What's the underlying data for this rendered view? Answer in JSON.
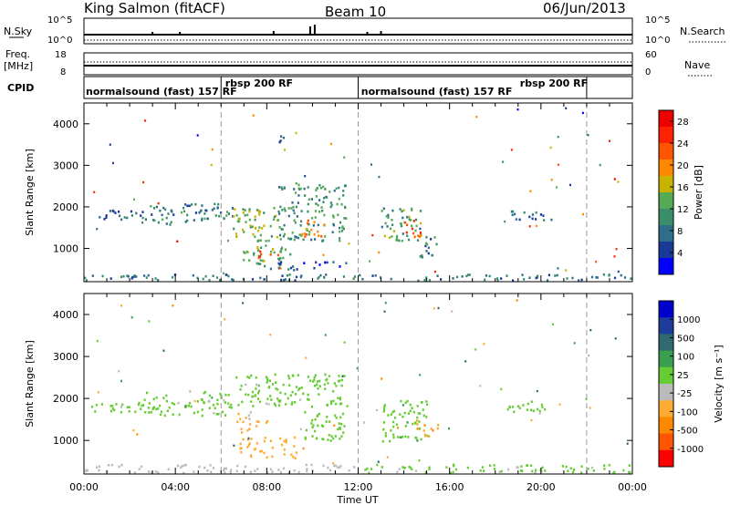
{
  "header": {
    "station": "King Salmon (fitACF)",
    "beam": "Beam 10",
    "date": "06/Jun/2013"
  },
  "strips": {
    "nsky_label": "N.Sky",
    "nsky_ticks": [
      "10^5",
      "10^0"
    ],
    "nsearch_label": "N.Search",
    "nsearch_ticks": [
      "10^5",
      "10^0"
    ],
    "freq_label": "Freq.",
    "freq_unit": "[MHz]",
    "freq_ticks": [
      "18",
      "8"
    ],
    "nave_label": "Nave",
    "nave_ticks": [
      "60",
      "0"
    ],
    "cpid_label": "CPID",
    "cpid_segments": [
      {
        "label": "normalsound (fast) 157 RF",
        "start": 0.0,
        "end": 6.0,
        "text_at": 0.0
      },
      {
        "label": "rbsp 200 RF",
        "start": 6.0,
        "end": 12.0,
        "text_at": 6.1
      },
      {
        "label": "normalsound (fast) 157 RF",
        "start": 12.0,
        "end": 22.0,
        "text_at": 12.05
      },
      {
        "label": "rbsp 200 RF",
        "start": 22.0,
        "end": 24.0,
        "text_at": 19.0
      }
    ]
  },
  "colors": {
    "power_scale": [
      "#0000ff",
      "#1a3a9a",
      "#2e6e8a",
      "#3a8f6a",
      "#55aa55",
      "#c8b400",
      "#ff8800",
      "#ff5500",
      "#ff2200",
      "#ee0000"
    ],
    "velocity_scale": [
      "#0000cc",
      "#1e3c9c",
      "#2e6a70",
      "#3aa050",
      "#66cc33",
      "#bbbbbb",
      "#ffaa33",
      "#ff8800",
      "#ff5500",
      "#ff0000"
    ],
    "ground_scatter": "#bbbbbb",
    "strip_line": "#000000"
  },
  "chart_data": [
    {
      "type": "heatmap",
      "panel": "power",
      "xlabel": "",
      "ylabel": "Slant Range [km]",
      "xlim": [
        0,
        24
      ],
      "ylim": [
        200,
        4500
      ],
      "yticks": [
        1000,
        2000,
        3000,
        4000
      ],
      "colorbar": {
        "label": "Power [dB]",
        "ticks": [
          "4",
          "8",
          "12",
          "16",
          "20",
          "24",
          "28"
        ],
        "range": [
          0,
          30
        ]
      },
      "echo_regions": [
        {
          "t0": 0.3,
          "t1": 2.5,
          "r0": 1700,
          "r1": 1950,
          "value": 7
        },
        {
          "t0": 2.5,
          "t1": 6.5,
          "r0": 1600,
          "r1": 2100,
          "value": 9
        },
        {
          "t0": 6.5,
          "t1": 8.5,
          "r0": 1200,
          "r1": 2000,
          "value": 14
        },
        {
          "t0": 8.5,
          "t1": 11.5,
          "r0": 1200,
          "r1": 2600,
          "value": 11
        },
        {
          "t0": 9.5,
          "t1": 10.5,
          "r0": 1300,
          "r1": 1700,
          "value": 20
        },
        {
          "t0": 6.8,
          "t1": 9.0,
          "r0": 600,
          "r1": 1100,
          "value": 13
        },
        {
          "t0": 7.5,
          "t1": 8.5,
          "r0": 800,
          "r1": 1000,
          "value": 24
        },
        {
          "t0": 8.0,
          "t1": 11.5,
          "r0": 500,
          "r1": 700,
          "value": 6
        },
        {
          "t0": 13.0,
          "t1": 14.8,
          "r0": 1200,
          "r1": 2000,
          "value": 12
        },
        {
          "t0": 14.0,
          "t1": 14.8,
          "r0": 1300,
          "r1": 1700,
          "value": 22
        },
        {
          "t0": 14.5,
          "t1": 15.5,
          "r0": 800,
          "r1": 1300,
          "value": 9
        },
        {
          "t0": 18.5,
          "t1": 20.5,
          "r0": 1700,
          "r1": 1950,
          "value": 8
        },
        {
          "t0": 8.3,
          "t1": 8.7,
          "r0": 3500,
          "r1": 3800,
          "value": 7
        },
        {
          "t0": 0.0,
          "t1": 24.0,
          "r0": 250,
          "r1": 400,
          "value": 8
        }
      ]
    },
    {
      "type": "heatmap",
      "panel": "velocity",
      "xlabel": "Time UT",
      "ylabel": "Slant Range [km]",
      "xlim": [
        0,
        24
      ],
      "ylim": [
        200,
        4500
      ],
      "xticks": [
        "00:00",
        "04:00",
        "08:00",
        "12:00",
        "16:00",
        "20:00",
        "00:00"
      ],
      "yticks": [
        1000,
        2000,
        3000,
        4000
      ],
      "colorbar": {
        "label": "Velocity [m s⁻¹]",
        "ticks": [
          "1000",
          "500",
          "100",
          "25",
          "-25",
          "-100",
          "-500",
          "-1000"
        ],
        "range": [
          -1250,
          1250
        ]
      },
      "echo_regions": [
        {
          "t0": 0.3,
          "t1": 2.5,
          "r0": 1700,
          "r1": 2000,
          "value": 0
        },
        {
          "t0": 2.5,
          "t1": 6.5,
          "r0": 1600,
          "r1": 2200,
          "value": 0
        },
        {
          "t0": 6.5,
          "t1": 11.5,
          "r0": 1800,
          "r1": 2600,
          "value": 0
        },
        {
          "t0": 6.5,
          "t1": 8.0,
          "r0": 1200,
          "r1": 1700,
          "value": -300
        },
        {
          "t0": 6.8,
          "t1": 9.5,
          "r0": 600,
          "r1": 1100,
          "value": -400
        },
        {
          "t0": 9.5,
          "t1": 11.5,
          "r0": 1000,
          "r1": 1700,
          "value": 150
        },
        {
          "t0": 13.0,
          "t1": 15.0,
          "r0": 1000,
          "r1": 2000,
          "value": 200
        },
        {
          "t0": 14.5,
          "t1": 15.5,
          "r0": 1100,
          "r1": 1500,
          "value": -500
        },
        {
          "t0": 18.5,
          "t1": 20.5,
          "r0": 1700,
          "r1": 1950,
          "value": 0
        },
        {
          "t0": 12.0,
          "t1": 24.0,
          "r0": 250,
          "r1": 450,
          "value": 40
        },
        {
          "t0": 0.0,
          "t1": 12.0,
          "r0": 250,
          "r1": 450,
          "value": -60
        }
      ]
    }
  ]
}
